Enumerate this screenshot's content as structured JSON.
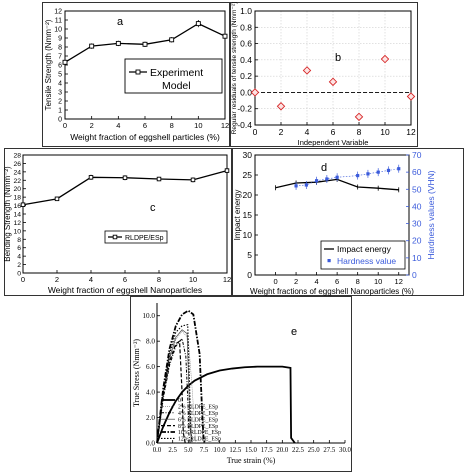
{
  "chart_data": [
    {
      "panel": "a",
      "type": "line",
      "letter": "a",
      "xlabel": "Weight fraction of eggshell particles (%)",
      "ylabel": "Tensile Strength (Nmm⁻²)",
      "xlim": [
        0,
        12
      ],
      "ylim": [
        0,
        12
      ],
      "xticks": [
        0,
        2,
        4,
        6,
        8,
        10,
        12
      ],
      "yticks": [
        0,
        1,
        2,
        3,
        4,
        5,
        6,
        7,
        8,
        9,
        10,
        11,
        12
      ],
      "series": [
        {
          "name": "Experiment",
          "x": [
            0,
            2,
            4,
            6,
            8,
            10,
            12
          ],
          "values": [
            6.3,
            8.1,
            8.4,
            8.3,
            8.8,
            10.6,
            9.2
          ],
          "err": [
            0.2,
            0.3,
            0.3,
            0.3,
            0.3,
            0.4,
            0.3
          ]
        }
      ],
      "legend": [
        "Experiment",
        "Model"
      ],
      "legend_position": "bottom-right"
    },
    {
      "panel": "b",
      "type": "scatter",
      "letter": "b",
      "xlabel": "Independent Variable",
      "ylabel": "Regular residuals of tensile strength (Nmm⁻²)",
      "xlim": [
        0,
        12
      ],
      "ylim": [
        -0.4,
        1.0
      ],
      "xticks": [
        0,
        2,
        4,
        6,
        8,
        10,
        12
      ],
      "yticks": [
        -0.4,
        -0.2,
        0.0,
        0.2,
        0.4,
        0.6,
        0.8,
        1.0
      ],
      "ytick_labels": [
        "-0.4",
        "-0.2",
        "0.0",
        "0.2",
        "0.4",
        "0.6",
        "0.8",
        "1.0"
      ],
      "points": {
        "x": [
          0,
          2,
          4,
          6,
          8,
          10,
          12
        ],
        "y": [
          0.0,
          -0.17,
          0.27,
          0.13,
          -0.3,
          0.41,
          -0.05
        ]
      },
      "grid": true,
      "reference_line": 0
    },
    {
      "panel": "c",
      "type": "line",
      "letter": "c",
      "xlabel": "Weight fraction of eggshell Nanoparticles",
      "ylabel": "Bending Strength (Nmm⁻²)",
      "xlim": [
        0,
        12
      ],
      "ylim": [
        0,
        28
      ],
      "xticks": [
        0,
        2,
        4,
        6,
        8,
        10,
        12
      ],
      "yticks": [
        0,
        2,
        4,
        6,
        8,
        10,
        12,
        14,
        16,
        18,
        20,
        22,
        24,
        26,
        28
      ],
      "series": [
        {
          "name": "RLDPE/ESp",
          "x": [
            0,
            2,
            4,
            6,
            8,
            10,
            12
          ],
          "values": [
            16.2,
            17.6,
            22.7,
            22.6,
            22.3,
            22.1,
            24.3
          ],
          "err": [
            0.3,
            0.5,
            0.6,
            0.6,
            0.5,
            0.6,
            0.7
          ]
        }
      ],
      "legend_position": "center-left"
    },
    {
      "panel": "d",
      "type": "line",
      "letter": "d",
      "xlabel": "Weight fractions of eggshell Nanoparticles (%)",
      "ylabel": "Impact energy",
      "y2label": "Hardness values (VHN)",
      "xlim": [
        -2,
        13
      ],
      "ylim": [
        0,
        30
      ],
      "y2lim": [
        0,
        70
      ],
      "xticks": [
        0,
        2,
        4,
        6,
        8,
        10,
        12
      ],
      "yticks": [
        0,
        5,
        10,
        15,
        20,
        25,
        30
      ],
      "y2ticks": [
        0,
        10,
        20,
        30,
        40,
        50,
        60,
        70
      ],
      "series": [
        {
          "name": "Impact energy",
          "axis": "left",
          "x": [
            0,
            2,
            4,
            6,
            8,
            10,
            12
          ],
          "values": [
            21.8,
            23.0,
            23.2,
            23.9,
            22.0,
            21.7,
            21.3
          ]
        },
        {
          "name": "Hardness value",
          "axis": "right",
          "x": [
            2,
            3,
            4,
            5,
            6,
            8,
            9,
            10,
            11,
            12
          ],
          "values": [
            52,
            52.5,
            55,
            56,
            57,
            58,
            59,
            60,
            61,
            62
          ]
        }
      ],
      "legend_position": "bottom-right"
    },
    {
      "panel": "e",
      "type": "line",
      "letter": "e",
      "xlabel": "True strain (%)",
      "ylabel": "True Stress (Nmm⁻²)",
      "xlim": [
        0,
        30
      ],
      "ylim": [
        0,
        11
      ],
      "xticks": [
        0,
        2.5,
        5,
        7.5,
        10,
        12.5,
        15,
        17.5,
        20,
        22.5,
        25,
        27.5,
        30
      ],
      "xtick_labels": [
        "0.0",
        "2.5",
        "5.0",
        "7.5",
        "10.0",
        "12.5",
        "15.0",
        "17.5",
        "20.0",
        "22.5",
        "25.0",
        "27.5",
        "30.0"
      ],
      "yticks": [
        0,
        2,
        4,
        6,
        8,
        10
      ],
      "ytick_labels": [
        "0.0",
        "2.0",
        "4.0",
        "6.0",
        "8.0",
        "10.0"
      ],
      "series": [
        {
          "name": "0",
          "x": [
            0,
            1,
            2,
            3,
            4,
            5,
            6,
            8,
            10,
            12,
            14,
            16,
            18,
            20,
            21.3,
            21.4,
            22.0
          ],
          "values": [
            0,
            1.3,
            2.4,
            3.3,
            4.0,
            4.5,
            4.9,
            5.4,
            5.7,
            5.85,
            5.95,
            6.0,
            6.0,
            6.0,
            5.9,
            0.4,
            0
          ]
        },
        {
          "name": "2% RLDPE_ESp",
          "x": [
            0,
            0.5,
            1,
            2,
            3,
            4,
            5,
            5.5,
            6.0,
            6.1,
            6.3
          ],
          "values": [
            0,
            1.9,
            3.9,
            6.6,
            8.1,
            8.8,
            8.2,
            5.0,
            1.5,
            0.3,
            0
          ]
        },
        {
          "name": "4% RLDPE_ESp",
          "x": [
            0,
            0.5,
            1,
            2,
            3,
            4,
            4.6,
            5.0,
            5.1,
            5.3
          ],
          "values": [
            0,
            1.7,
            3.5,
            6.1,
            7.6,
            8.2,
            6.8,
            2.5,
            0.6,
            0
          ]
        },
        {
          "name": "6% RLDPE_ESp",
          "x": [
            0,
            0.5,
            1,
            2,
            3,
            4,
            4.8,
            5.1,
            5.3,
            5.6
          ],
          "values": [
            0,
            2.0,
            3.9,
            6.7,
            8.3,
            8.9,
            8.6,
            4.0,
            1.0,
            0
          ]
        },
        {
          "name": "8% RLDPE_ESp",
          "x": [
            0,
            0.5,
            1,
            2,
            3,
            3.6,
            4.0,
            4.2,
            4.5
          ],
          "values": [
            0,
            1.8,
            3.7,
            6.4,
            7.8,
            8.0,
            4.0,
            0.8,
            0
          ]
        },
        {
          "name": "10% RLDPE_ESp",
          "x": [
            0,
            0.5,
            1,
            2,
            3,
            4,
            5,
            5.8,
            6.8,
            7.2,
            7.4,
            7.6
          ],
          "values": [
            0,
            2.2,
            4.3,
            7.4,
            9.2,
            10.1,
            10.4,
            10.1,
            7.0,
            2.5,
            0.6,
            0
          ]
        },
        {
          "name": "12% RLDPE_ESp",
          "x": [
            0,
            0.5,
            1,
            2,
            3,
            4,
            4.9,
            5.2,
            5.4,
            5.6
          ],
          "values": [
            0,
            2.1,
            4.1,
            7.0,
            8.7,
            9.2,
            9.3,
            4.5,
            1.0,
            0
          ]
        }
      ],
      "legend_position": "bottom-left"
    }
  ]
}
